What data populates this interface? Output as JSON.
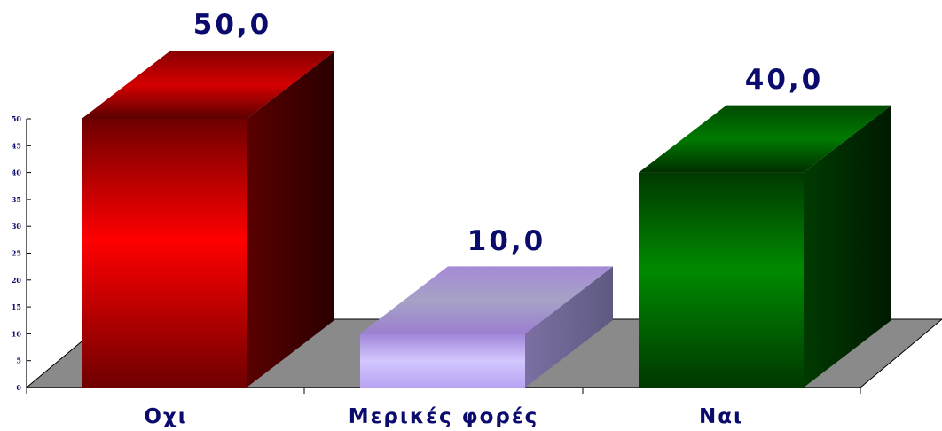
{
  "chart_data": {
    "type": "bar",
    "categories": [
      "Οχι",
      "Μερικές φορές",
      "Ναι"
    ],
    "values": [
      50.0,
      10.0,
      40.0
    ],
    "value_labels": [
      "50,0",
      "10,0",
      "40,0"
    ],
    "y_ticks": [
      0,
      5,
      10,
      15,
      20,
      25,
      30,
      35,
      40,
      45,
      50
    ],
    "ylim": [
      0,
      50
    ],
    "title": "",
    "xlabel": "",
    "ylabel": "",
    "grid": false,
    "legend": "none",
    "colors": {
      "bar_red": "#ff0000",
      "bar_purple": "#c9b9ff",
      "bar_green": "#008000",
      "floor": "#8a8a8a",
      "text": "#0b0b6e"
    }
  }
}
